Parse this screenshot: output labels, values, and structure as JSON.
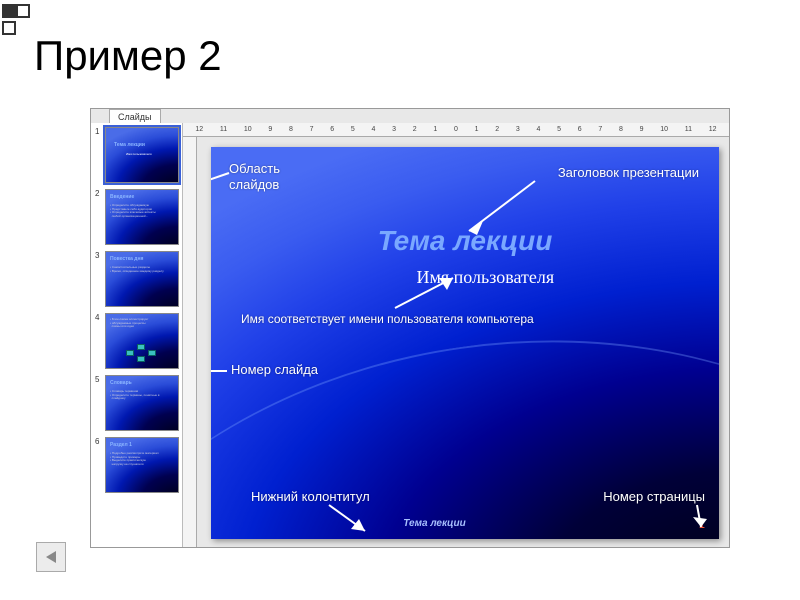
{
  "page": {
    "title": "Пример 2"
  },
  "app": {
    "slides_tab": "Слайды",
    "ruler_marks": [
      "12",
      "11",
      "10",
      "9",
      "8",
      "7",
      "6",
      "5",
      "4",
      "3",
      "2",
      "1",
      "0",
      "1",
      "2",
      "3",
      "4",
      "5",
      "6",
      "7",
      "8",
      "9",
      "10",
      "11",
      "12"
    ]
  },
  "thumbnails": [
    {
      "num": "1",
      "title": "Тема лекции",
      "sub": "Имя пользователя",
      "selected": true
    },
    {
      "num": "2",
      "title": "Введение",
      "body": "• Определите обсуждаемую\n• Представьте себя аудитории\n• Определите ключевые аспекты\n  любой организационной..."
    },
    {
      "num": "3",
      "title": "Повестка дня",
      "body": "• Самостоятельные разделы\n• Время, отведенное каждому разделу"
    },
    {
      "num": "4",
      "title": "",
      "body": "• Блок-схема иллюстрирует\n• обсуждаемые процессы\n  схемы или идеи",
      "diagram": true
    },
    {
      "num": "5",
      "title": "Словарь",
      "body": "• Словарь терминов\n• Определите термины, понятные в\n  слайдшоу"
    },
    {
      "num": "6",
      "title": "Раздел 1",
      "body": "• Подробно рассмотрите материал\n• Приведите примеры\n• Выделите практическую\n  нагрузку на слушателя"
    }
  ],
  "slide": {
    "title": "Тема лекции",
    "username": "Имя пользователя",
    "footer": "Тема лекции",
    "page_number": "1"
  },
  "annotations": {
    "slides_area": "Область\nслайдов",
    "pres_title": "Заголовок презентации",
    "username_note": "Имя соответствует имени пользователя компьютера",
    "slide_number": "Номер слайда",
    "footer": "Нижний колонтитул",
    "page_number": "Номер страницы"
  },
  "colors": {
    "title_color": "#7aa8ff",
    "text_white": "#ffffff",
    "page_num_color": "#ff5a3a",
    "bg_dark": "#000030",
    "bg_light": "#3a5cf0"
  }
}
